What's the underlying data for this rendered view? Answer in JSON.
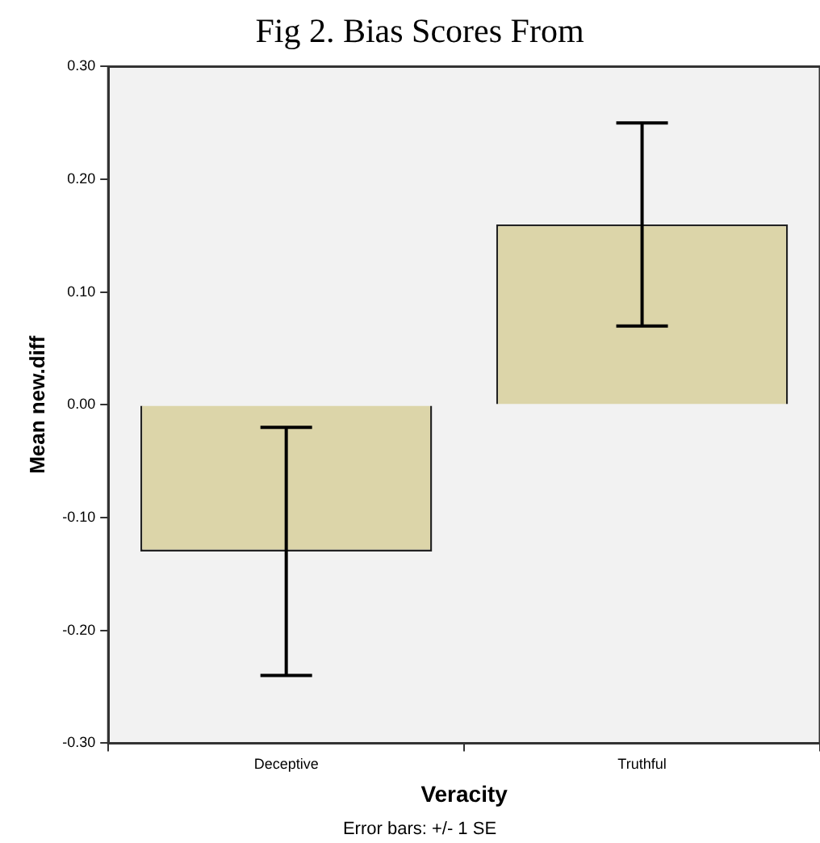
{
  "chart_data": {
    "type": "bar",
    "title": "Fig 2. Bias Scores From",
    "xlabel": "Veracity",
    "ylabel": "Mean new.diff",
    "categories": [
      "Deceptive",
      "Truthful"
    ],
    "values": [
      -0.13,
      0.16
    ],
    "errors": [
      0.11,
      0.09
    ],
    "color": "#dcd5a9",
    "ylim": [
      -0.3,
      0.3
    ],
    "yticks": [
      {
        "value": -0.3,
        "label": "-0.30"
      },
      {
        "value": -0.2,
        "label": "-0.20"
      },
      {
        "value": -0.1,
        "label": "-0.10"
      },
      {
        "value": 0,
        "label": "0.00"
      },
      {
        "value": 0.1,
        "label": "0.10"
      },
      {
        "value": 0.2,
        "label": "0.20"
      },
      {
        "value": 0.3,
        "label": "0.30"
      }
    ],
    "grid": false,
    "legend": false,
    "annotations": [
      "Error bars: +/- 1 SE"
    ]
  }
}
